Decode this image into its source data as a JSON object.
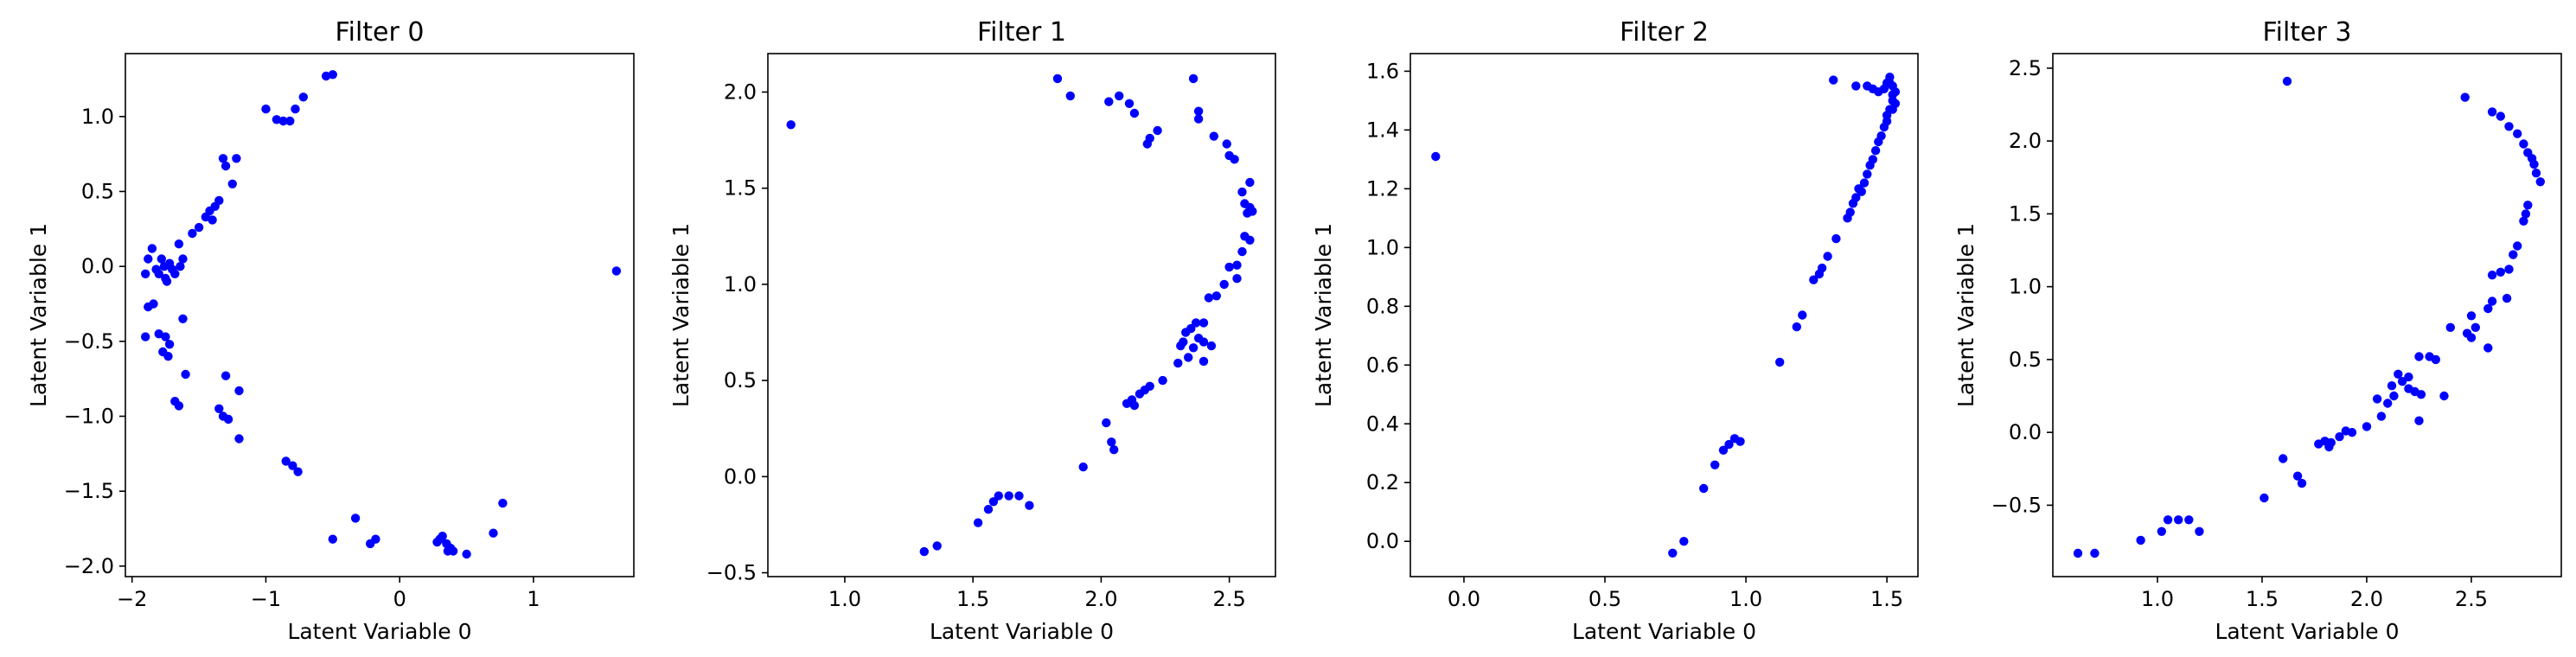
{
  "chart_data": [
    {
      "type": "scatter",
      "title": "Filter 0",
      "xlabel": "Latent Variable 0",
      "ylabel": "Latent Variable 1",
      "xlim": [
        -2.05,
        1.75
      ],
      "ylim": [
        -2.07,
        1.42
      ],
      "xticks": [
        -2,
        -1,
        0,
        1
      ],
      "yticks": [
        -2.0,
        -1.5,
        -1.0,
        -0.5,
        0.0,
        0.5,
        1.0
      ],
      "grid": false,
      "color": "#0000ff",
      "points": [
        [
          1.62,
          -0.03
        ],
        [
          -0.55,
          1.27
        ],
        [
          -0.5,
          1.28
        ],
        [
          -0.72,
          1.13
        ],
        [
          -0.78,
          1.05
        ],
        [
          -0.82,
          0.97
        ],
        [
          -0.87,
          0.97
        ],
        [
          -0.92,
          0.98
        ],
        [
          -1.0,
          1.05
        ],
        [
          -1.22,
          0.72
        ],
        [
          -1.32,
          0.72
        ],
        [
          -1.3,
          0.67
        ],
        [
          -1.25,
          0.55
        ],
        [
          -1.35,
          0.44
        ],
        [
          -1.38,
          0.4
        ],
        [
          -1.42,
          0.37
        ],
        [
          -1.45,
          0.33
        ],
        [
          -1.4,
          0.31
        ],
        [
          -1.5,
          0.26
        ],
        [
          -1.55,
          0.22
        ],
        [
          -1.65,
          0.15
        ],
        [
          -1.62,
          0.05
        ],
        [
          -1.64,
          0.0
        ],
        [
          -1.7,
          -0.02
        ],
        [
          -1.72,
          0.02
        ],
        [
          -1.76,
          0.0
        ],
        [
          -1.8,
          -0.05
        ],
        [
          -1.75,
          -0.08
        ],
        [
          -1.68,
          -0.05
        ],
        [
          -1.85,
          0.12
        ],
        [
          -1.88,
          0.05
        ],
        [
          -1.9,
          -0.05
        ],
        [
          -1.78,
          0.05
        ],
        [
          -1.82,
          -0.02
        ],
        [
          -1.74,
          -0.1
        ],
        [
          -1.88,
          -0.27
        ],
        [
          -1.84,
          -0.25
        ],
        [
          -1.62,
          -0.35
        ],
        [
          -1.8,
          -0.45
        ],
        [
          -1.75,
          -0.47
        ],
        [
          -1.72,
          -0.52
        ],
        [
          -1.77,
          -0.57
        ],
        [
          -1.73,
          -0.6
        ],
        [
          -1.9,
          -0.47
        ],
        [
          -1.6,
          -0.72
        ],
        [
          -1.68,
          -0.9
        ],
        [
          -1.65,
          -0.93
        ],
        [
          -1.3,
          -0.73
        ],
        [
          -1.2,
          -0.83
        ],
        [
          -1.35,
          -0.95
        ],
        [
          -1.32,
          -1.0
        ],
        [
          -1.28,
          -1.02
        ],
        [
          -1.2,
          -1.15
        ],
        [
          -0.85,
          -1.3
        ],
        [
          -0.8,
          -1.33
        ],
        [
          -0.76,
          -1.37
        ],
        [
          -0.33,
          -1.68
        ],
        [
          -0.5,
          -1.82
        ],
        [
          -0.22,
          -1.85
        ],
        [
          -0.18,
          -1.82
        ],
        [
          0.28,
          -1.84
        ],
        [
          0.32,
          -1.8
        ],
        [
          0.35,
          -1.85
        ],
        [
          0.38,
          -1.88
        ],
        [
          0.4,
          -1.9
        ],
        [
          0.36,
          -1.9
        ],
        [
          0.5,
          -1.92
        ],
        [
          0.7,
          -1.78
        ],
        [
          0.77,
          -1.58
        ],
        [
          0.3,
          -1.82
        ]
      ]
    },
    {
      "type": "scatter",
      "title": "Filter 1",
      "xlabel": "Latent Variable 0",
      "ylabel": "Latent Variable 1",
      "xlim": [
        0.7,
        2.68
      ],
      "ylim": [
        -0.52,
        2.2
      ],
      "xticks": [
        1.0,
        1.5,
        2.0,
        2.5
      ],
      "yticks": [
        -0.5,
        0.0,
        0.5,
        1.0,
        1.5,
        2.0
      ],
      "grid": false,
      "color": "#0000ff",
      "points": [
        [
          0.79,
          1.83
        ],
        [
          1.83,
          2.07
        ],
        [
          1.88,
          1.98
        ],
        [
          2.03,
          1.95
        ],
        [
          2.07,
          1.98
        ],
        [
          2.11,
          1.94
        ],
        [
          2.13,
          1.89
        ],
        [
          2.19,
          1.76
        ],
        [
          2.18,
          1.73
        ],
        [
          2.22,
          1.8
        ],
        [
          2.36,
          2.07
        ],
        [
          2.38,
          1.9
        ],
        [
          2.38,
          1.86
        ],
        [
          2.44,
          1.77
        ],
        [
          2.49,
          1.73
        ],
        [
          2.5,
          1.67
        ],
        [
          2.52,
          1.65
        ],
        [
          2.55,
          1.48
        ],
        [
          2.58,
          1.53
        ],
        [
          2.56,
          1.42
        ],
        [
          2.58,
          1.4
        ],
        [
          2.57,
          1.37
        ],
        [
          2.59,
          1.38
        ],
        [
          2.56,
          1.25
        ],
        [
          2.58,
          1.23
        ],
        [
          2.55,
          1.17
        ],
        [
          2.53,
          1.1
        ],
        [
          2.5,
          1.09
        ],
        [
          2.53,
          1.03
        ],
        [
          2.48,
          1.0
        ],
        [
          2.45,
          0.94
        ],
        [
          2.42,
          0.93
        ],
        [
          2.4,
          0.8
        ],
        [
          2.37,
          0.8
        ],
        [
          2.35,
          0.77
        ],
        [
          2.33,
          0.75
        ],
        [
          2.32,
          0.7
        ],
        [
          2.38,
          0.72
        ],
        [
          2.4,
          0.7
        ],
        [
          2.36,
          0.67
        ],
        [
          2.43,
          0.68
        ],
        [
          2.31,
          0.68
        ],
        [
          2.34,
          0.62
        ],
        [
          2.4,
          0.6
        ],
        [
          2.3,
          0.59
        ],
        [
          2.24,
          0.5
        ],
        [
          2.19,
          0.47
        ],
        [
          2.15,
          0.43
        ],
        [
          2.12,
          0.4
        ],
        [
          2.1,
          0.38
        ],
        [
          2.13,
          0.37
        ],
        [
          2.17,
          0.45
        ],
        [
          2.02,
          0.28
        ],
        [
          2.04,
          0.18
        ],
        [
          2.05,
          0.14
        ],
        [
          1.93,
          0.05
        ],
        [
          1.68,
          -0.1
        ],
        [
          1.64,
          -0.1
        ],
        [
          1.6,
          -0.1
        ],
        [
          1.58,
          -0.13
        ],
        [
          1.56,
          -0.17
        ],
        [
          1.72,
          -0.15
        ],
        [
          1.52,
          -0.24
        ],
        [
          1.36,
          -0.36
        ],
        [
          1.31,
          -0.39
        ]
      ]
    },
    {
      "type": "scatter",
      "title": "Filter 2",
      "xlabel": "Latent Variable 0",
      "ylabel": "Latent Variable 1",
      "xlim": [
        -0.19,
        1.61
      ],
      "ylim": [
        -0.12,
        1.66
      ],
      "xticks": [
        0.0,
        0.5,
        1.0,
        1.5
      ],
      "yticks": [
        0.0,
        0.2,
        0.4,
        0.6,
        0.8,
        1.0,
        1.2,
        1.4,
        1.6
      ],
      "grid": false,
      "color": "#0000ff",
      "points": [
        [
          -0.1,
          1.31
        ],
        [
          0.74,
          -0.04
        ],
        [
          0.78,
          0.0
        ],
        [
          0.85,
          0.18
        ],
        [
          0.89,
          0.26
        ],
        [
          0.92,
          0.31
        ],
        [
          0.94,
          0.33
        ],
        [
          0.96,
          0.35
        ],
        [
          0.98,
          0.34
        ],
        [
          1.12,
          0.61
        ],
        [
          1.18,
          0.73
        ],
        [
          1.2,
          0.77
        ],
        [
          1.24,
          0.89
        ],
        [
          1.26,
          0.91
        ],
        [
          1.27,
          0.93
        ],
        [
          1.29,
          0.97
        ],
        [
          1.32,
          1.03
        ],
        [
          1.36,
          1.1
        ],
        [
          1.37,
          1.12
        ],
        [
          1.38,
          1.15
        ],
        [
          1.39,
          1.17
        ],
        [
          1.4,
          1.2
        ],
        [
          1.41,
          1.19
        ],
        [
          1.42,
          1.22
        ],
        [
          1.43,
          1.25
        ],
        [
          1.44,
          1.28
        ],
        [
          1.45,
          1.3
        ],
        [
          1.46,
          1.33
        ],
        [
          1.47,
          1.36
        ],
        [
          1.48,
          1.38
        ],
        [
          1.49,
          1.41
        ],
        [
          1.5,
          1.43
        ],
        [
          1.5,
          1.45
        ],
        [
          1.51,
          1.47
        ],
        [
          1.52,
          1.5
        ],
        [
          1.52,
          1.52
        ],
        [
          1.53,
          1.53
        ],
        [
          1.52,
          1.55
        ],
        [
          1.51,
          1.58
        ],
        [
          1.5,
          1.56
        ],
        [
          1.49,
          1.54
        ],
        [
          1.47,
          1.53
        ],
        [
          1.45,
          1.54
        ],
        [
          1.43,
          1.55
        ],
        [
          1.39,
          1.55
        ],
        [
          1.31,
          1.57
        ],
        [
          1.51,
          1.56
        ],
        [
          1.53,
          1.49
        ],
        [
          1.52,
          1.47
        ]
      ]
    },
    {
      "type": "scatter",
      "title": "Filter 3",
      "xlabel": "Latent Variable 0",
      "ylabel": "Latent Variable 1",
      "xlim": [
        0.5,
        2.93
      ],
      "ylim": [
        -0.99,
        2.6
      ],
      "xticks": [
        1.0,
        1.5,
        2.0,
        2.5
      ],
      "yticks": [
        -0.5,
        0.0,
        0.5,
        1.0,
        1.5,
        2.0,
        2.5
      ],
      "grid": false,
      "color": "#0000ff",
      "points": [
        [
          1.62,
          2.41
        ],
        [
          2.47,
          2.3
        ],
        [
          2.6,
          2.2
        ],
        [
          2.64,
          2.17
        ],
        [
          2.68,
          2.1
        ],
        [
          2.72,
          2.05
        ],
        [
          2.75,
          1.98
        ],
        [
          2.77,
          1.92
        ],
        [
          2.79,
          1.88
        ],
        [
          2.8,
          1.84
        ],
        [
          2.83,
          1.72
        ],
        [
          2.81,
          1.78
        ],
        [
          2.77,
          1.56
        ],
        [
          2.76,
          1.5
        ],
        [
          2.75,
          1.45
        ],
        [
          2.72,
          1.28
        ],
        [
          2.7,
          1.22
        ],
        [
          2.68,
          1.12
        ],
        [
          2.64,
          1.1
        ],
        [
          2.6,
          1.08
        ],
        [
          2.67,
          0.92
        ],
        [
          2.6,
          0.9
        ],
        [
          2.58,
          0.85
        ],
        [
          2.5,
          0.8
        ],
        [
          2.52,
          0.72
        ],
        [
          2.48,
          0.68
        ],
        [
          2.5,
          0.65
        ],
        [
          2.58,
          0.58
        ],
        [
          2.4,
          0.72
        ],
        [
          2.3,
          0.52
        ],
        [
          2.33,
          0.5
        ],
        [
          2.25,
          0.52
        ],
        [
          2.2,
          0.38
        ],
        [
          2.15,
          0.4
        ],
        [
          2.17,
          0.35
        ],
        [
          2.12,
          0.32
        ],
        [
          2.2,
          0.3
        ],
        [
          2.23,
          0.28
        ],
        [
          2.26,
          0.26
        ],
        [
          2.13,
          0.25
        ],
        [
          2.05,
          0.23
        ],
        [
          2.1,
          0.2
        ],
        [
          2.37,
          0.25
        ],
        [
          2.25,
          0.08
        ],
        [
          2.07,
          0.11
        ],
        [
          2.0,
          0.04
        ],
        [
          1.93,
          0.0
        ],
        [
          1.9,
          0.01
        ],
        [
          1.87,
          -0.03
        ],
        [
          1.83,
          -0.07
        ],
        [
          1.8,
          -0.06
        ],
        [
          1.77,
          -0.08
        ],
        [
          1.82,
          -0.1
        ],
        [
          1.6,
          -0.18
        ],
        [
          1.67,
          -0.3
        ],
        [
          1.69,
          -0.35
        ],
        [
          1.51,
          -0.45
        ],
        [
          1.2,
          -0.68
        ],
        [
          1.15,
          -0.6
        ],
        [
          1.1,
          -0.6
        ],
        [
          1.05,
          -0.6
        ],
        [
          1.02,
          -0.68
        ],
        [
          0.92,
          -0.74
        ],
        [
          0.7,
          -0.83
        ],
        [
          0.62,
          -0.83
        ]
      ]
    }
  ]
}
